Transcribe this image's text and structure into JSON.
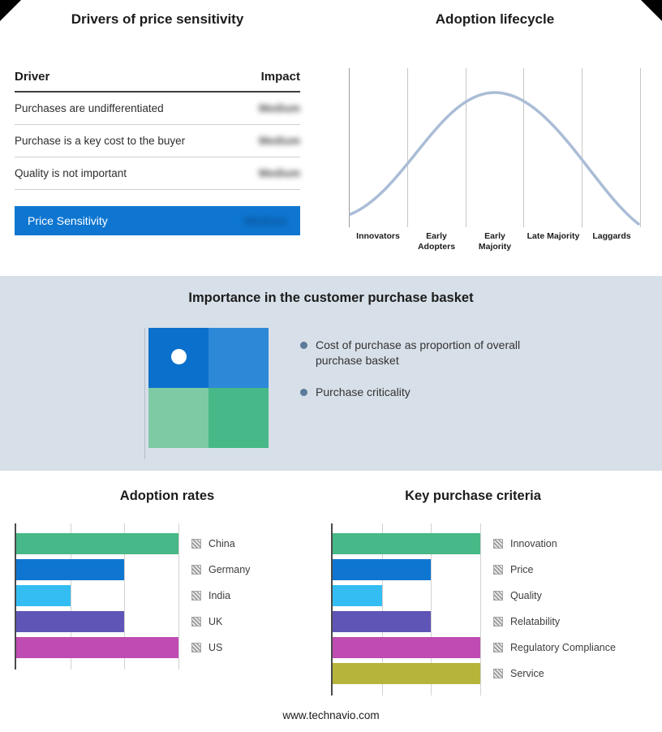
{
  "page": {
    "footer_text": "www.technavio.com"
  },
  "drivers_table": {
    "title": "Drivers of price sensitivity",
    "columns": {
      "driver": "Driver",
      "impact": "Impact"
    },
    "rows": [
      {
        "driver": "Purchases are undifferentiated",
        "impact": "Medium"
      },
      {
        "driver": "Purchase is a key cost to the buyer",
        "impact": "Medium"
      },
      {
        "driver": "Quality is not important",
        "impact": "Medium"
      }
    ],
    "summary_row": {
      "label": "Price Sensitivity",
      "impact": "Medium"
    },
    "accent_color": "#0e76d1"
  },
  "purchase_basket": {
    "title": "Importance in the customer purchase basket",
    "bullets": [
      "Cost of purchase as proportion of overall purchase basket",
      "Purchase criticality"
    ],
    "quadrant_colors": [
      "#0b70cc",
      "#2d88d8",
      "#7ecaa5",
      "#47b887"
    ],
    "background_color": "#d7dfe8"
  },
  "chart_data": [
    {
      "type": "line",
      "title": "Adoption lifecycle",
      "x": [
        "Innovators",
        "Early Adopters",
        "Early Majority",
        "Late Majority",
        "Laggards"
      ],
      "shape": "bell-curve",
      "peak_stage": "Early Majority",
      "line_color": "#aabdd6",
      "grid": true,
      "y_axis": "hidden",
      "legend_position": "none"
    },
    {
      "type": "bar",
      "title": "Adoption rates",
      "orientation": "horizontal",
      "categories": [
        "China",
        "Germany",
        "India",
        "UK",
        "US"
      ],
      "values": [
        3,
        2,
        1,
        2,
        3
      ],
      "xlim": [
        0,
        3
      ],
      "colors": [
        "#47b887",
        "#0e76d1",
        "#33bdf2",
        "#5f55b7",
        "#bf4cb2"
      ],
      "grid": true,
      "legend_position": "right"
    },
    {
      "type": "bar",
      "title": "Key purchase criteria",
      "orientation": "horizontal",
      "categories": [
        "Innovation",
        "Price",
        "Quality",
        "Relatability",
        "Regulatory Compliance",
        "Service"
      ],
      "values": [
        3,
        2,
        1,
        2,
        3,
        3
      ],
      "xlim": [
        0,
        3
      ],
      "colors": [
        "#47b887",
        "#0e76d1",
        "#33bdf2",
        "#5f55b7",
        "#bf4cb2",
        "#b6b43a"
      ],
      "grid": true,
      "legend_position": "right"
    }
  ]
}
